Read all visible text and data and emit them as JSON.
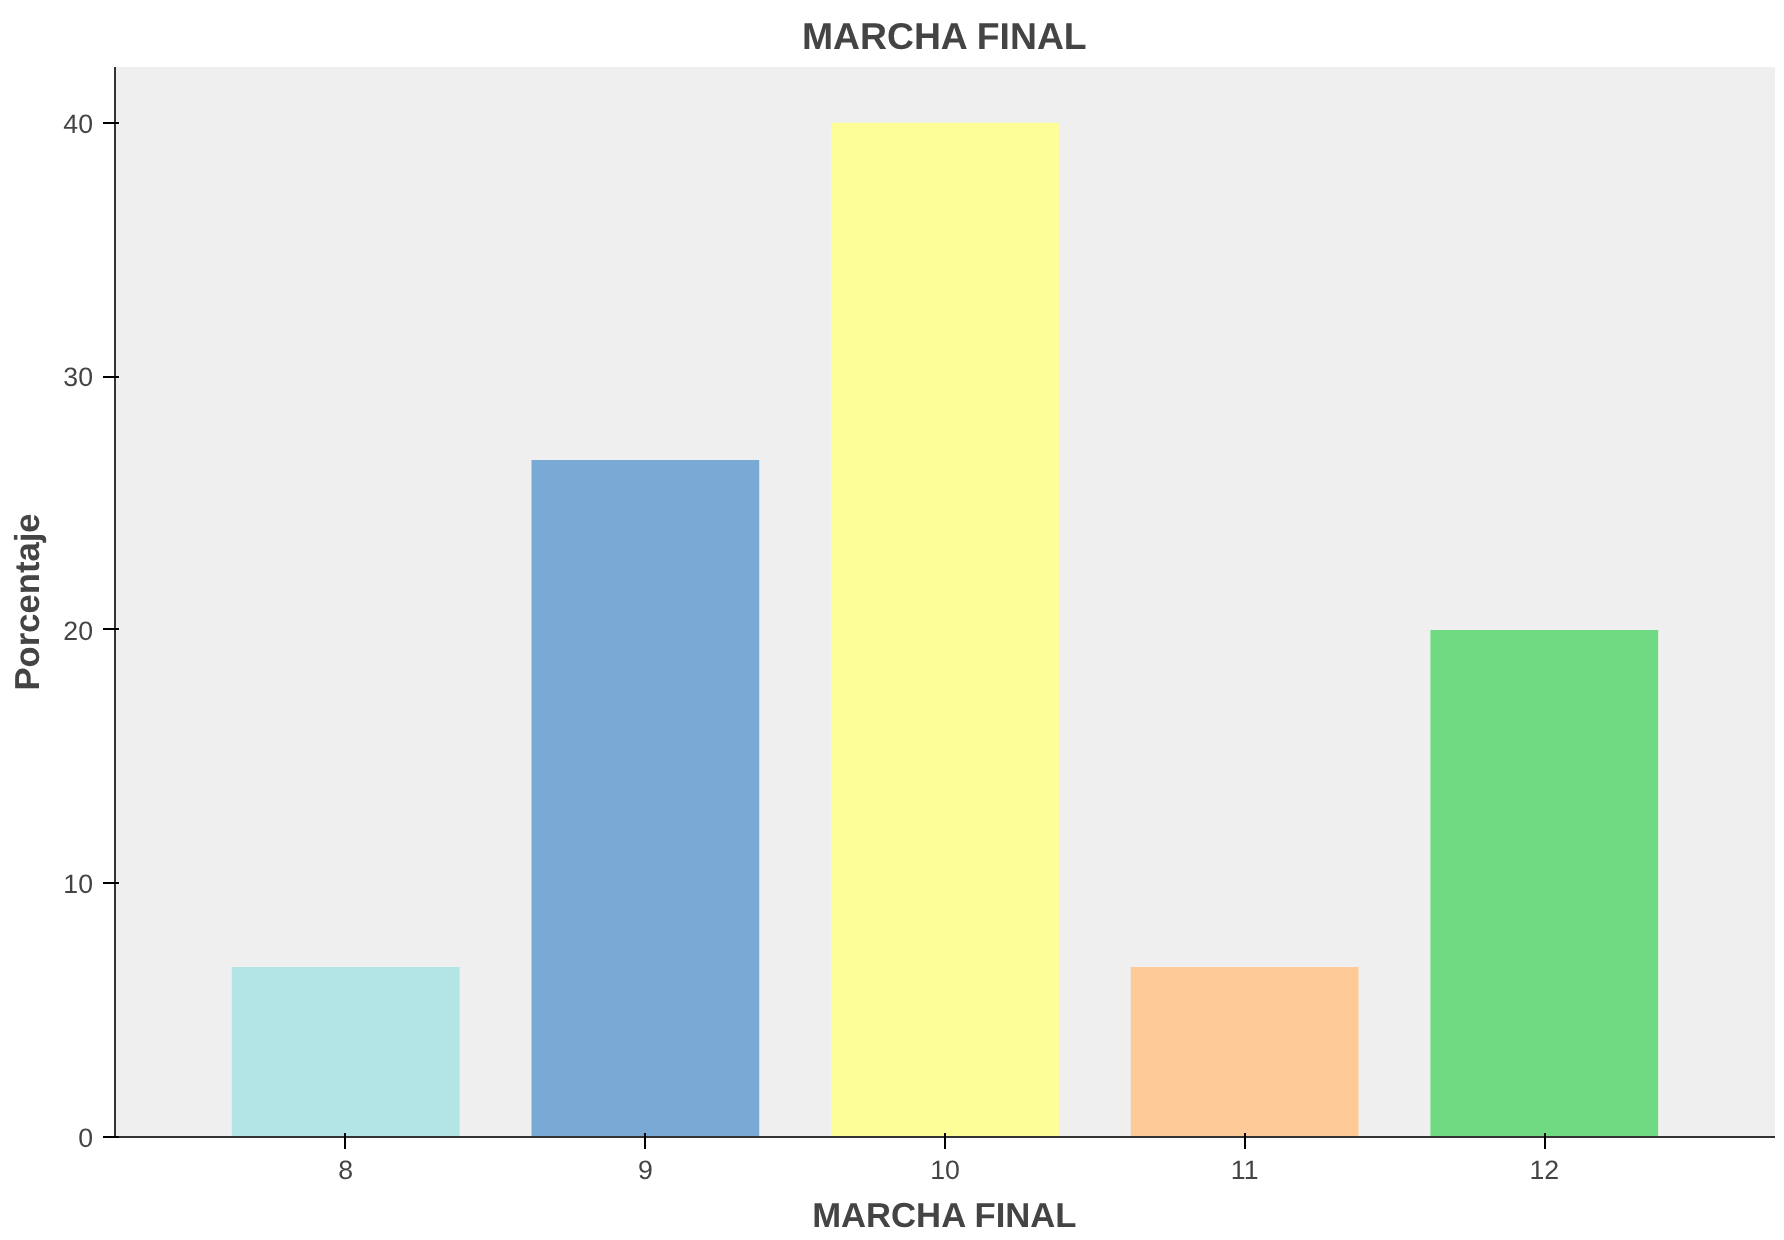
{
  "chart_data": {
    "type": "bar",
    "title": "MARCHA FINAL",
    "xlabel": "MARCHA FINAL",
    "ylabel": "Porcentaje",
    "categories": [
      "8",
      "9",
      "10",
      "11",
      "12"
    ],
    "values": [
      6.7,
      26.7,
      40,
      6.7,
      20
    ],
    "colors": [
      "#b3e5e6",
      "#79a9d5",
      "#fefe99",
      "#fecb98",
      "#70da82"
    ],
    "ylim": [
      0,
      42.2
    ],
    "yticks": [
      0,
      10,
      20,
      30,
      40
    ],
    "grid": false
  }
}
